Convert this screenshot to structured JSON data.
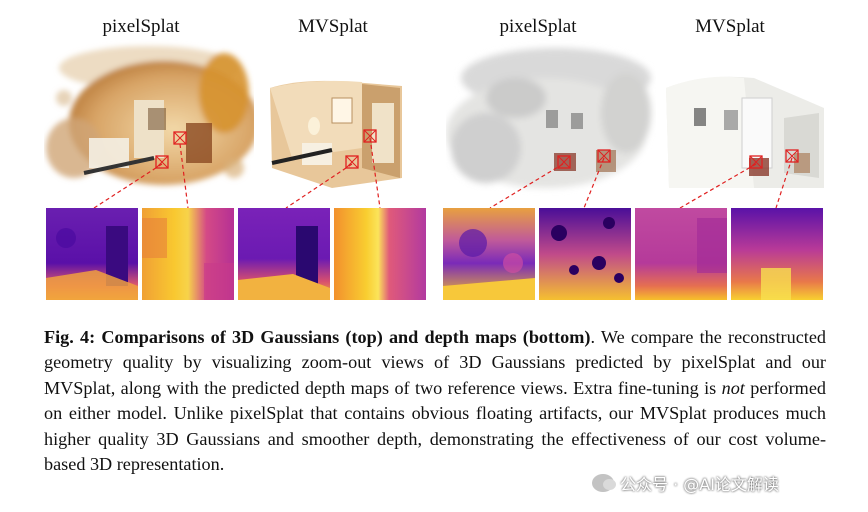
{
  "figure": {
    "top_labels": [
      "pixelSplat",
      "MVSplat",
      "pixelSplat",
      "MVSplat"
    ]
  },
  "caption": {
    "label": "Fig. 4:",
    "title": "Comparisons of 3D Gaussians (top) and depth maps (bottom)",
    "body_1": ". We compare the reconstructed geometry quality by visualizing zoom-out views of 3D Gaussians predicted by pixelSplat and our MVSplat, along with the predicted depth maps of two reference views. Extra fine-tuning is ",
    "emphasis": "not",
    "body_2": " performed on either model. Unlike pixelSplat that contains obvious floating artifacts, our MVSplat produces much higher quality 3D Gaussians and smoother depth, demonstrating the effectiveness of our cost volume-based 3D representation."
  },
  "watermark": {
    "text": "公众号 · @AI论文解读"
  },
  "colors": {
    "marker_red": "#e02020",
    "depth_near": "#f9d524",
    "depth_mid": "#e0498a",
    "depth_far": "#3a0ca3"
  }
}
